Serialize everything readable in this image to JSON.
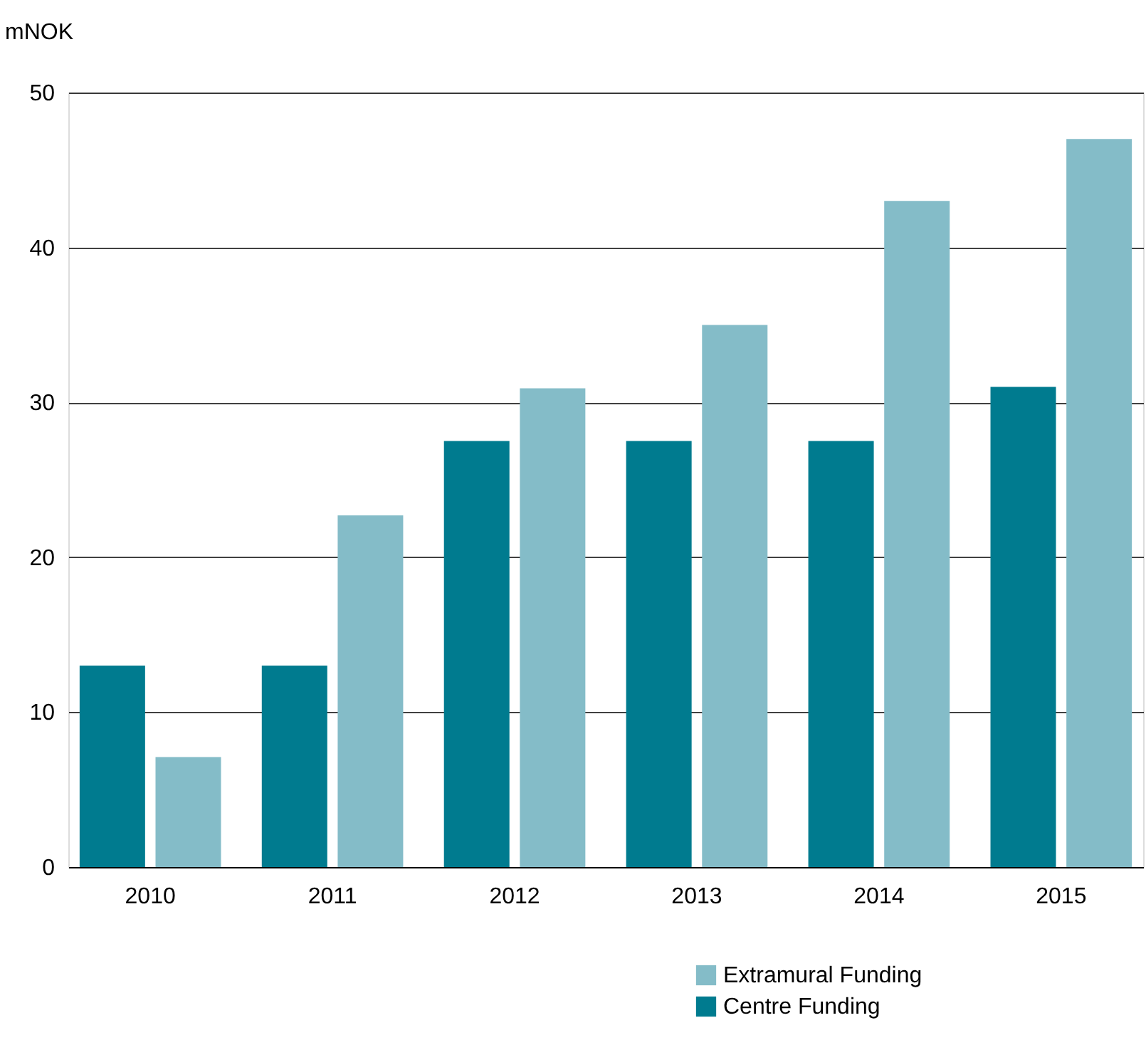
{
  "chart_data": {
    "type": "bar",
    "ylabel": "mNOK",
    "categories": [
      "2010",
      "2011",
      "2012",
      "2013",
      "2014",
      "2015"
    ],
    "series": [
      {
        "name": "Centre Funding",
        "color": "#007b8f",
        "values": [
          13,
          13,
          27.5,
          27.5,
          27.5,
          31
        ]
      },
      {
        "name": "Extramural Funding",
        "color": "#84bcc8",
        "values": [
          7.1,
          22.7,
          30.9,
          35,
          43,
          47
        ]
      }
    ],
    "ylim": [
      0,
      50
    ],
    "yticks": [
      0,
      10,
      20,
      30,
      40,
      50
    ],
    "grid": "y",
    "legend": "bottom right"
  }
}
